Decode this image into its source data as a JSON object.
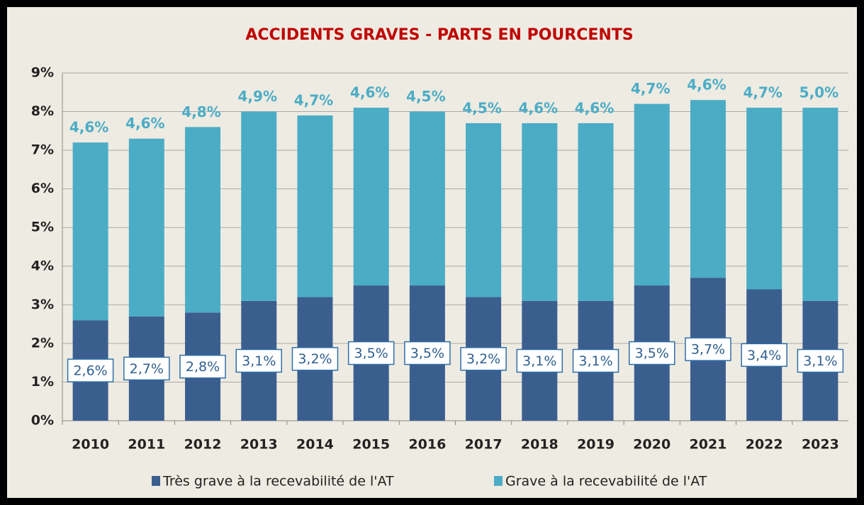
{
  "chart_data": {
    "type": "stacked_bar",
    "title": "ACCIDENTS GRAVES - PARTS EN POURCENTS",
    "categories": [
      "2010",
      "2011",
      "2012",
      "2013",
      "2014",
      "2015",
      "2016",
      "2017",
      "2018",
      "2019",
      "2020",
      "2021",
      "2022",
      "2023"
    ],
    "series": [
      {
        "name": "Très grave à la recevabilité de l'AT",
        "color": "#3a5f8f",
        "values": [
          2.6,
          2.7,
          2.8,
          3.1,
          3.2,
          3.5,
          3.5,
          3.2,
          3.1,
          3.1,
          3.5,
          3.7,
          3.4,
          3.1
        ],
        "value_labels": [
          "2,6%",
          "2,7%",
          "2,8%",
          "3,1%",
          "3,2%",
          "3,5%",
          "3,5%",
          "3,2%",
          "3,1%",
          "3,1%",
          "3,5%",
          "3,7%",
          "3,4%",
          "3,1%"
        ]
      },
      {
        "name": "Grave à la recevabilité de l'AT",
        "color": "#4bacc6",
        "values": [
          4.6,
          4.6,
          4.8,
          4.9,
          4.7,
          4.6,
          4.5,
          4.5,
          4.6,
          4.6,
          4.7,
          4.6,
          4.7,
          5.0
        ],
        "value_labels": [
          "4,6%",
          "4,6%",
          "4,8%",
          "4,9%",
          "4,7%",
          "4,6%",
          "4,5%",
          "4,5%",
          "4,6%",
          "4,6%",
          "4,7%",
          "4,6%",
          "4,7%",
          "5,0%"
        ]
      }
    ],
    "ylim": [
      0,
      9
    ],
    "yticks": [
      {
        "value": 0,
        "label": "0%"
      },
      {
        "value": 1,
        "label": "1%"
      },
      {
        "value": 2,
        "label": "2%"
      },
      {
        "value": 3,
        "label": "3%"
      },
      {
        "value": 4,
        "label": "4%"
      },
      {
        "value": 5,
        "label": "5%"
      },
      {
        "value": 6,
        "label": "6%"
      },
      {
        "value": 7,
        "label": "7%"
      },
      {
        "value": 8,
        "label": "8%"
      },
      {
        "value": 9,
        "label": "9%"
      }
    ],
    "grid": true,
    "legend": "bottom"
  }
}
